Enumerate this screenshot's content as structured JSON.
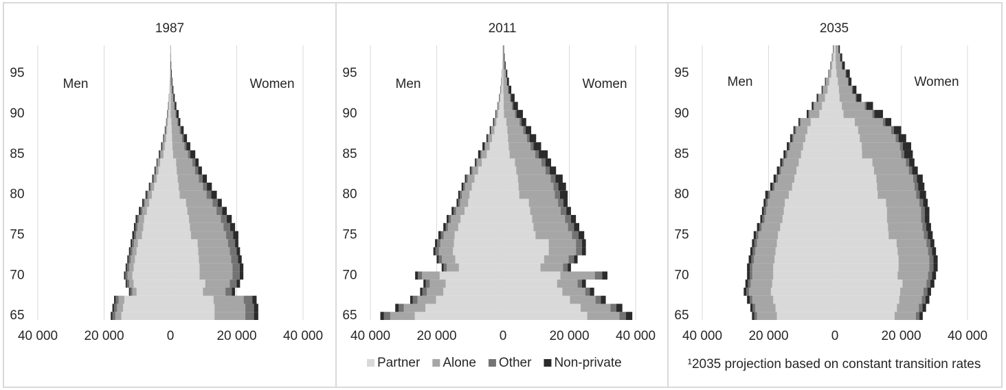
{
  "legend": {
    "items": [
      {
        "name": "Partner",
        "color": "#d9d9d9"
      },
      {
        "name": "Alone",
        "color": "#a6a6a6"
      },
      {
        "name": "Other",
        "color": "#737373"
      },
      {
        "name": "Non-private",
        "color": "#2b2b2b"
      }
    ]
  },
  "footnote": "¹2035 projection based on constant transition rates",
  "chart_data": [
    {
      "type": "bar",
      "orientation": "horizontal",
      "stacked": true,
      "title": "1987",
      "left_label": "Men",
      "right_label": "Women",
      "y": [
        65,
        66,
        67,
        68,
        69,
        70,
        71,
        72,
        73,
        74,
        75,
        76,
        77,
        78,
        79,
        80,
        81,
        82,
        83,
        84,
        85,
        86,
        87,
        88,
        89,
        90,
        91,
        92,
        93,
        94,
        95,
        96,
        97,
        98
      ],
      "ylim": [
        64.5,
        98.5
      ],
      "yticks": [
        65,
        70,
        75,
        80,
        85,
        90,
        95
      ],
      "xlim": [
        -40000,
        40000
      ],
      "xticks": [
        {
          "value": -40000,
          "label": "40 000"
        },
        {
          "value": -20000,
          "label": "20 000"
        },
        0,
        {
          "value": 20000,
          "label": "20 000"
        },
        {
          "value": 40000,
          "label": "40 000"
        }
      ],
      "grid": true,
      "series": [
        {
          "men": [
            -14800,
            -14300,
            -13900,
            -10200,
            -11100,
            -11500,
            -11100,
            -10700,
            -10200,
            -9800,
            -8600,
            -8200,
            -7900,
            -7100,
            -6400,
            -5600,
            -4900,
            -4100,
            -3600,
            -3100,
            -2100,
            -1700,
            -1300,
            -1000,
            -800,
            -600,
            -400,
            -300,
            -200,
            -100,
            -100,
            -50,
            -30,
            -20
          ],
          "women": [
            13300,
            13300,
            13000,
            9800,
            10500,
            8800,
            8800,
            8600,
            8400,
            8200,
            6200,
            5900,
            5600,
            5100,
            4700,
            2800,
            2500,
            2200,
            1900,
            1700,
            800,
            600,
            500,
            400,
            300,
            100,
            100,
            100,
            0,
            0,
            0,
            0,
            0,
            0
          ]
        },
        {
          "men": [
            -1800,
            -1800,
            -1700,
            -1300,
            -1300,
            -1400,
            -1300,
            -1300,
            -1300,
            -1200,
            -1700,
            -1700,
            -1600,
            -1400,
            -1300,
            -1100,
            -1000,
            -800,
            -700,
            -700,
            -900,
            -700,
            -600,
            -400,
            -300,
            -250,
            -200,
            -150,
            -100,
            -50,
            -50,
            -50,
            -20,
            -10
          ],
          "women": [
            9300,
            9300,
            9100,
            6800,
            7400,
            9900,
            9900,
            9700,
            9500,
            9200,
            10600,
            10100,
            9600,
            8800,
            8000,
            8100,
            7300,
            6400,
            5500,
            4900,
            4500,
            3600,
            3000,
            2400,
            1800,
            1400,
            1000,
            700,
            500,
            300,
            200,
            100,
            100,
            50
          ]
        },
        {
          "men": [
            -900,
            -900,
            -900,
            -600,
            -700,
            -700,
            -700,
            -600,
            -600,
            -600,
            -600,
            -600,
            -500,
            -500,
            -400,
            -400,
            -300,
            -300,
            -200,
            -200,
            -200,
            -100,
            -100,
            -100,
            -100,
            -50,
            0,
            0,
            0,
            0,
            0,
            0,
            0,
            0
          ],
          "women": [
            2600,
            2600,
            2600,
            1900,
            2100,
            2200,
            2200,
            2100,
            2100,
            2100,
            2100,
            2000,
            1800,
            1700,
            1600,
            1400,
            1200,
            1100,
            1000,
            900,
            700,
            600,
            500,
            400,
            300,
            300,
            200,
            100,
            100,
            100,
            0,
            0,
            0,
            0
          ]
        },
        {
          "men": [
            -500,
            -500,
            -500,
            -400,
            -400,
            -400,
            -400,
            -400,
            -400,
            -400,
            -600,
            -500,
            -500,
            -500,
            -400,
            -400,
            -300,
            -300,
            -300,
            -200,
            -300,
            -300,
            -200,
            -200,
            -100,
            -100,
            -100,
            -50,
            0,
            -50,
            0,
            0,
            0,
            0
          ],
          "women": [
            1300,
            1300,
            1300,
            1000,
            1000,
            1100,
            1100,
            1100,
            1000,
            1000,
            1600,
            1500,
            1500,
            1400,
            1200,
            1700,
            1500,
            1300,
            1100,
            1000,
            1500,
            1200,
            1000,
            800,
            600,
            700,
            500,
            400,
            300,
            200,
            200,
            150,
            50,
            50
          ]
        }
      ]
    },
    {
      "type": "bar",
      "orientation": "horizontal",
      "stacked": true,
      "title": "2011",
      "left_label": "Men",
      "right_label": "Women",
      "y": [
        65,
        66,
        67,
        68,
        69,
        70,
        71,
        72,
        73,
        74,
        75,
        76,
        77,
        78,
        79,
        80,
        81,
        82,
        83,
        84,
        85,
        86,
        87,
        88,
        89,
        90,
        91,
        92,
        93,
        94,
        95,
        96,
        97,
        98
      ],
      "ylim": [
        64.5,
        98.5
      ],
      "yticks": [
        65,
        70,
        75,
        80,
        85,
        90,
        95
      ],
      "xlim": [
        -40000,
        40000
      ],
      "xticks": [
        {
          "value": -40000,
          "label": "40 000"
        },
        {
          "value": -20000,
          "label": "20 000"
        },
        0,
        {
          "value": 20000,
          "label": "20 000"
        },
        {
          "value": 40000,
          "label": "40 000"
        }
      ],
      "grid": true,
      "series": [
        {
          "men": [
            -26600,
            -23400,
            -20200,
            -18000,
            -17300,
            -19100,
            -13300,
            -14400,
            -15100,
            -14800,
            -14600,
            -13500,
            -12800,
            -11600,
            -10500,
            -10100,
            -9400,
            -8600,
            -7500,
            -6400,
            -4900,
            -4000,
            -3300,
            -2600,
            -2000,
            -1500,
            -1100,
            -800,
            -500,
            -300,
            -200,
            -130,
            -80,
            -50
          ],
          "women": [
            25400,
            23400,
            20200,
            17900,
            16300,
            17300,
            11300,
            12400,
            13800,
            13800,
            9800,
            9200,
            8800,
            8200,
            7800,
            4900,
            4700,
            4500,
            4000,
            3600,
            2000,
            1700,
            1500,
            1300,
            1000,
            300,
            200,
            200,
            100,
            100,
            100,
            0,
            0,
            0
          ]
        },
        {
          "men": [
            -7400,
            -6500,
            -5600,
            -5000,
            -4800,
            -5300,
            -3700,
            -4000,
            -4200,
            -4100,
            -3300,
            -3100,
            -2900,
            -2600,
            -2400,
            -2300,
            -2100,
            -2000,
            -1700,
            -1400,
            -1600,
            -1400,
            -1100,
            -900,
            -600,
            -500,
            -400,
            -250,
            -200,
            -100,
            -100,
            -50,
            -30,
            -20
          ],
          "women": [
            9700,
            9000,
            7700,
            6900,
            6200,
            10400,
            6800,
            7400,
            8200,
            8200,
            11000,
            10400,
            9900,
            9200,
            8800,
            10700,
            10500,
            9900,
            8800,
            8000,
            7700,
            6600,
            5700,
            4800,
            4000,
            3300,
            2500,
            1900,
            1400,
            1000,
            700,
            450,
            300,
            150
          ]
        },
        {
          "men": [
            -1900,
            -1600,
            -1400,
            -1300,
            -1200,
            -1300,
            -900,
            -1000,
            -1100,
            -1000,
            -800,
            -700,
            -700,
            -700,
            -600,
            -600,
            -500,
            -500,
            -400,
            -400,
            -300,
            -200,
            -200,
            -200,
            -100,
            -100,
            -100,
            -50,
            0,
            0,
            0,
            0,
            0,
            0
          ],
          "women": [
            2000,
            1800,
            1600,
            1400,
            1300,
            2200,
            1400,
            1600,
            1800,
            1800,
            2000,
            1800,
            1800,
            1700,
            1600,
            1600,
            1500,
            1400,
            1300,
            1200,
            1100,
            900,
            800,
            700,
            600,
            500,
            400,
            300,
            200,
            100,
            100,
            50,
            0,
            0
          ]
        },
        {
          "men": [
            -1100,
            -1000,
            -800,
            -700,
            -700,
            -800,
            -600,
            -600,
            -600,
            -600,
            -800,
            -700,
            -600,
            -600,
            -500,
            -500,
            -500,
            -400,
            -400,
            -300,
            -700,
            -600,
            -400,
            -300,
            -300,
            -200,
            -100,
            -100,
            -100,
            -100,
            -50,
            -20,
            -10,
            -10
          ],
          "women": [
            1900,
            1800,
            1500,
            1300,
            1200,
            1600,
            1000,
            1100,
            1200,
            1200,
            1700,
            1600,
            1500,
            1400,
            1300,
            2300,
            2300,
            2200,
            1900,
            1700,
            2700,
            2300,
            2000,
            1700,
            1400,
            1900,
            1400,
            1100,
            800,
            600,
            400,
            300,
            200,
            150
          ]
        }
      ]
    },
    {
      "type": "bar",
      "orientation": "horizontal",
      "stacked": true,
      "title": "2035",
      "left_label": "Men",
      "right_label": "Women",
      "y": [
        65,
        66,
        67,
        68,
        69,
        70,
        71,
        72,
        73,
        74,
        75,
        76,
        77,
        78,
        79,
        80,
        81,
        82,
        83,
        84,
        85,
        86,
        87,
        88,
        89,
        90,
        91,
        92,
        93,
        94,
        95,
        96,
        97,
        98
      ],
      "ylim": [
        64.5,
        98.5
      ],
      "yticks": [
        65,
        70,
        75,
        80,
        85,
        90,
        95
      ],
      "xlim": [
        -40000,
        40000
      ],
      "xticks": [
        {
          "value": -40000,
          "label": "40 000"
        },
        {
          "value": -20000,
          "label": "20 000"
        },
        0,
        {
          "value": 20000,
          "label": "20 000"
        },
        {
          "value": 40000,
          "label": "40 000"
        }
      ],
      "grid": true,
      "series": [
        {
          "men": [
            -17500,
            -17900,
            -18600,
            -19300,
            -18900,
            -18600,
            -18600,
            -18200,
            -17900,
            -17500,
            -17200,
            -16500,
            -15800,
            -15400,
            -15100,
            -13900,
            -12900,
            -12200,
            -11600,
            -10900,
            -10200,
            -9600,
            -8900,
            -8300,
            -7300,
            -4700,
            -3900,
            -3000,
            -2200,
            -1700,
            -1100,
            -800,
            -500,
            -300
          ],
          "women": [
            18000,
            18700,
            19400,
            19700,
            20400,
            18900,
            19200,
            19200,
            18900,
            18600,
            16200,
            16000,
            15700,
            15700,
            15400,
            12900,
            12700,
            12500,
            11800,
            11300,
            8200,
            8100,
            7500,
            7000,
            6000,
            2600,
            2100,
            1400,
            1200,
            900,
            500,
            300,
            200,
            200
          ]
        },
        {
          "men": [
            -6000,
            -6100,
            -6300,
            -6600,
            -6500,
            -6300,
            -6300,
            -6200,
            -6100,
            -6000,
            -5900,
            -5600,
            -5400,
            -5300,
            -5200,
            -5700,
            -5300,
            -5000,
            -4700,
            -4500,
            -4200,
            -3900,
            -3600,
            -3400,
            -3000,
            -3000,
            -2400,
            -1900,
            -1400,
            -1000,
            -700,
            -500,
            -300,
            -200
          ],
          "women": [
            6400,
            6600,
            6800,
            7000,
            7200,
            9200,
            9300,
            9300,
            9200,
            9000,
            10600,
            10400,
            10300,
            10300,
            10100,
            11600,
            11300,
            11100,
            10500,
            10100,
            11800,
            11500,
            10800,
            10000,
            8500,
            8700,
            6900,
            4800,
            3900,
            3000,
            2700,
            1800,
            1300,
            900
          ]
        },
        {
          "men": [
            -800,
            -800,
            -800,
            -800,
            -800,
            -800,
            -800,
            -800,
            -800,
            -800,
            -700,
            -700,
            -700,
            -700,
            -600,
            -600,
            -600,
            -600,
            -500,
            -500,
            -500,
            -400,
            -400,
            -400,
            -300,
            -300,
            -200,
            -200,
            -100,
            -100,
            -100,
            0,
            0,
            0
          ],
          "women": [
            1100,
            1100,
            1100,
            1200,
            1200,
            1200,
            1200,
            1200,
            1200,
            1200,
            1200,
            1100,
            1100,
            1100,
            1100,
            1100,
            1100,
            1100,
            1000,
            1000,
            900,
            900,
            900,
            800,
            700,
            600,
            500,
            300,
            300,
            200,
            200,
            100,
            100,
            0
          ]
        },
        {
          "men": [
            -700,
            -700,
            -800,
            -800,
            -800,
            -800,
            -800,
            -800,
            -700,
            -700,
            -700,
            -700,
            -600,
            -600,
            -600,
            -800,
            -700,
            -700,
            -700,
            -600,
            -600,
            -600,
            -600,
            -400,
            -400,
            -500,
            -500,
            -400,
            -300,
            -200,
            -100,
            -100,
            -100,
            -100
          ],
          "women": [
            1000,
            1100,
            1200,
            1100,
            1200,
            1200,
            1300,
            1300,
            1200,
            1200,
            1500,
            1500,
            1400,
            1400,
            1400,
            1900,
            1900,
            1800,
            1700,
            1600,
            2600,
            2500,
            2300,
            2200,
            1800,
            2600,
            2000,
            1500,
            1100,
            900,
            1100,
            800,
            600,
            400
          ]
        }
      ]
    }
  ]
}
